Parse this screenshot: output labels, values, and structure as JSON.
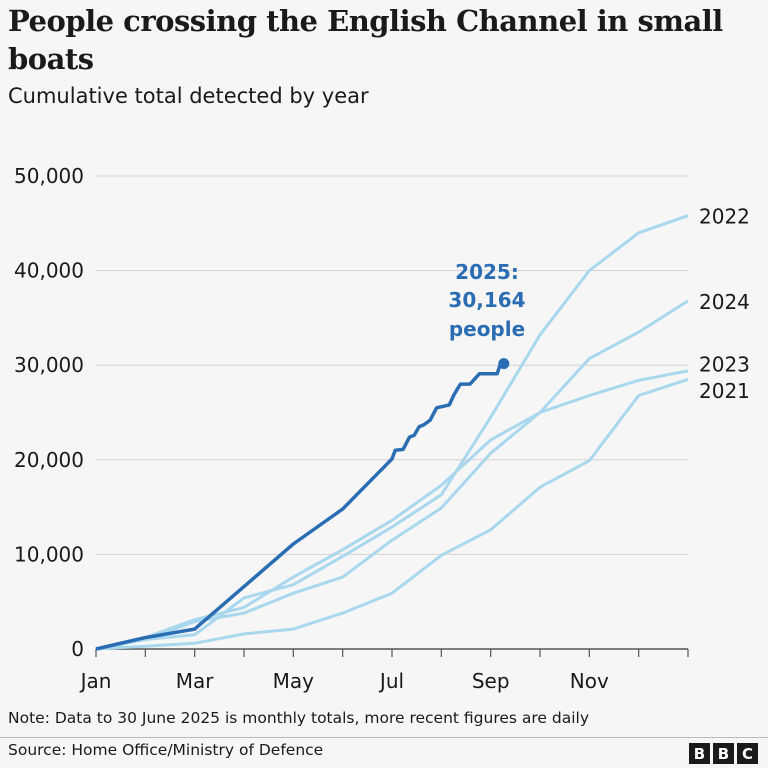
{
  "title": "People crossing the English Channel in small boats",
  "subtitle": "Cumulative total detected by year",
  "note": "Note: Data to 30 June 2025 is monthly totals, more recent figures are daily",
  "source": "Source: Home Office/Ministry of Defence",
  "logo": [
    "B",
    "B",
    "C"
  ],
  "chart_data": {
    "type": "line",
    "ylim": [
      0,
      50000
    ],
    "yticks": [
      0,
      10000,
      20000,
      30000,
      40000,
      50000
    ],
    "ytick_labels": [
      "0",
      "10,000",
      "20,000",
      "30,000",
      "40,000",
      "50,000"
    ],
    "xlim": [
      "Jan 1",
      "Dec 31"
    ],
    "xtick_labels": [
      "Jan",
      "Mar",
      "May",
      "Jul",
      "Sep",
      "Nov"
    ],
    "grid": true,
    "colors": {
      "highlight": "#2a6db3",
      "other": "#a9d8ee"
    },
    "series": [
      {
        "name": "2021",
        "highlight": false,
        "points": [
          [
            "Jan 1",
            0
          ],
          [
            "Feb 1",
            300
          ],
          [
            "Mar 1",
            600
          ],
          [
            "Apr 1",
            1600
          ],
          [
            "May 1",
            2100
          ],
          [
            "Jun 1",
            3800
          ],
          [
            "Jul 1",
            5900
          ],
          [
            "Aug 1",
            9900
          ],
          [
            "Sep 1",
            12600
          ],
          [
            "Oct 1",
            17100
          ],
          [
            "Nov 1",
            19900
          ],
          [
            "Dec 1",
            26800
          ],
          [
            "Dec 31",
            28500
          ]
        ]
      },
      {
        "name": "2023",
        "highlight": false,
        "points": [
          [
            "Jan 1",
            0
          ],
          [
            "Feb 1",
            1000
          ],
          [
            "Mar 1",
            2900
          ],
          [
            "Apr 1",
            3800
          ],
          [
            "May 1",
            5900
          ],
          [
            "Jun 1",
            7600
          ],
          [
            "Jul 1",
            11500
          ],
          [
            "Aug 1",
            14900
          ],
          [
            "Sep 1",
            20700
          ],
          [
            "Oct 1",
            25000
          ],
          [
            "Nov 1",
            26800
          ],
          [
            "Dec 1",
            28400
          ],
          [
            "Dec 31",
            29400
          ]
        ]
      },
      {
        "name": "2024",
        "highlight": false,
        "points": [
          [
            "Jan 1",
            0
          ],
          [
            "Feb 1",
            1200
          ],
          [
            "Mar 1",
            3100
          ],
          [
            "Apr 1",
            4400
          ],
          [
            "May 1",
            7600
          ],
          [
            "Jun 1",
            10500
          ],
          [
            "Jul 1",
            13600
          ],
          [
            "Aug 1",
            17300
          ],
          [
            "Sep 1",
            22100
          ],
          [
            "Oct 1",
            25000
          ],
          [
            "Nov 1",
            30700
          ],
          [
            "Dec 1",
            33500
          ],
          [
            "Dec 31",
            36800
          ]
        ]
      },
      {
        "name": "2022",
        "highlight": false,
        "points": [
          [
            "Jan 1",
            0
          ],
          [
            "Feb 1",
            1000
          ],
          [
            "Mar 1",
            1500
          ],
          [
            "Apr 1",
            5400
          ],
          [
            "May 1",
            6800
          ],
          [
            "Jun 1",
            9800
          ],
          [
            "Jul 1",
            12900
          ],
          [
            "Aug 1",
            16300
          ],
          [
            "Sep 1",
            24500
          ],
          [
            "Oct 1",
            33200
          ],
          [
            "Nov 1",
            40000
          ],
          [
            "Dec 1",
            44000
          ],
          [
            "Dec 31",
            45800
          ]
        ]
      },
      {
        "name": "2025",
        "highlight": true,
        "points": [
          [
            "Jan 1",
            0
          ],
          [
            "Feb 1",
            1200
          ],
          [
            "Mar 1",
            2100
          ],
          [
            "Apr 1",
            6600
          ],
          [
            "May 1",
            11100
          ],
          [
            "Jun 1",
            14800
          ],
          [
            "Jul 1",
            20100
          ],
          [
            "Jul 3",
            21000
          ],
          [
            "Jul 8",
            21100
          ],
          [
            "Jul 12",
            22400
          ],
          [
            "Jul 15",
            22600
          ],
          [
            "Jul 18",
            23500
          ],
          [
            "Jul 21",
            23700
          ],
          [
            "Jul 25",
            24200
          ],
          [
            "Jul 29",
            25500
          ],
          [
            "Aug 6",
            25800
          ],
          [
            "Aug 9",
            26900
          ],
          [
            "Aug 13",
            28000
          ],
          [
            "Aug 19",
            28000
          ],
          [
            "Aug 25",
            29100
          ],
          [
            "Sep 5",
            29100
          ],
          [
            "Sep 7",
            30164
          ],
          [
            "Sep 9",
            30164
          ]
        ]
      }
    ],
    "series_labels": [
      "2022",
      "2024",
      "2023",
      "2021"
    ],
    "annotation": {
      "line1": "2025:",
      "line2": "30,164",
      "line3": "people"
    }
  }
}
